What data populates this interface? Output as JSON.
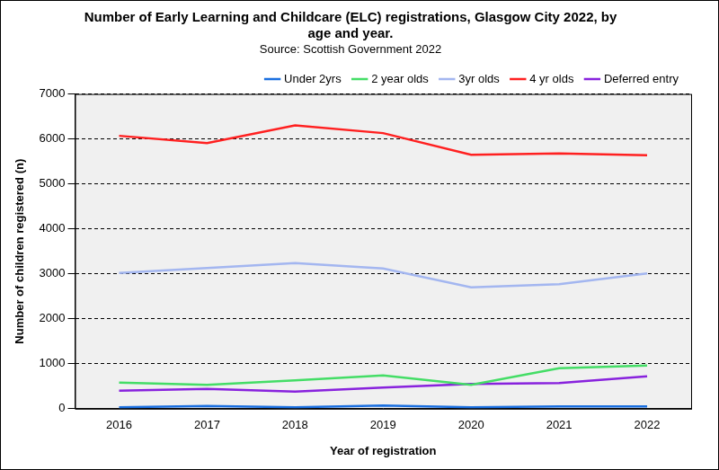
{
  "chart_data": {
    "type": "line",
    "title": [
      "Number of Early Learning and Childcare (ELC) registrations, Glasgow City 2022, by",
      "age and year."
    ],
    "subtitle": "Source: Scottish Government 2022",
    "x_label": "Year of registration",
    "y_label": "Number of children registered (n)",
    "categories": [
      "2016",
      "2017",
      "2018",
      "2019",
      "2020",
      "2021",
      "2022"
    ],
    "series": [
      {
        "name": "Under 2yrs",
        "color": "#1a6fe0",
        "values": [
          30,
          60,
          30,
          70,
          30,
          50,
          50
        ]
      },
      {
        "name": "2 year olds",
        "color": "#44dd66",
        "values": [
          580,
          530,
          630,
          740,
          530,
          900,
          960
        ]
      },
      {
        "name": "3yr olds",
        "color": "#a3b6f0",
        "values": [
          3020,
          3130,
          3240,
          3120,
          2700,
          2770,
          3010
        ]
      },
      {
        "name": "4 yr olds",
        "color": "#ff2020",
        "values": [
          6070,
          5910,
          6300,
          6130,
          5650,
          5680,
          5640
        ]
      },
      {
        "name": "Deferred entry",
        "color": "#8822dd",
        "values": [
          400,
          440,
          380,
          470,
          550,
          570,
          720
        ]
      }
    ],
    "ylim": [
      0,
      7000
    ],
    "yticks": [
      0,
      1000,
      2000,
      3000,
      4000,
      5000,
      6000,
      7000
    ],
    "grid": true,
    "legend": "top"
  }
}
